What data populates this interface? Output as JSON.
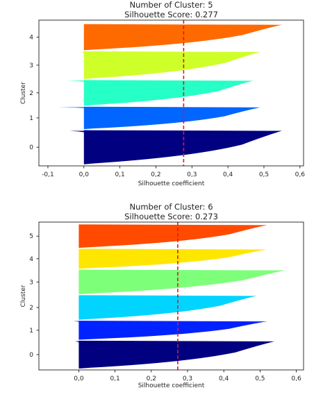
{
  "chart_data": [
    {
      "type": "area",
      "title": "Number of Cluster: 5",
      "subtitle": "Silhouette Score: 0.277",
      "xlabel": "Silhouette coefficient",
      "ylabel": "Cluster",
      "xlim": [
        -0.125,
        0.61
      ],
      "x_ticks": [
        -0.1,
        0.0,
        0.1,
        0.2,
        0.3,
        0.4,
        0.5,
        0.6
      ],
      "x_tick_labels": [
        "-0,1",
        "0,0",
        "0,1",
        "0,2",
        "0,3",
        "0,4",
        "0,5",
        "0,6"
      ],
      "ylim": [
        -0.72,
        4.75
      ],
      "y_ticks": [
        0,
        1,
        2,
        3,
        4
      ],
      "average_line": {
        "value": 0.277,
        "color": "#e8141a",
        "style": "dashed"
      },
      "clusters": [
        {
          "label": "0",
          "y_start": -0.66,
          "y_end": 0.62,
          "min": -0.04,
          "max": 0.55,
          "color": "#000080"
        },
        {
          "label": "1",
          "y_start": 0.66,
          "y_end": 1.5,
          "min": -0.07,
          "max": 0.49,
          "color": "#0066ff"
        },
        {
          "label": "2",
          "y_start": 1.54,
          "y_end": 2.5,
          "min": -0.05,
          "max": 0.47,
          "color": "#26ffc6"
        },
        {
          "label": "3",
          "y_start": 2.54,
          "y_end": 3.58,
          "min": -0.01,
          "max": 0.49,
          "color": "#ceff29"
        },
        {
          "label": "4",
          "y_start": 3.62,
          "y_end": 4.6,
          "min": 0.0,
          "max": 0.55,
          "color": "#ff6a00"
        }
      ]
    },
    {
      "type": "area",
      "title": "Number of Cluster: 6",
      "subtitle": "Silhouette Score: 0.273",
      "xlabel": "Silhouette coefficient",
      "ylabel": "Cluster",
      "xlim": [
        -0.11,
        0.62
      ],
      "x_ticks": [
        0.0,
        0.1,
        0.2,
        0.3,
        0.4,
        0.5,
        0.6
      ],
      "x_tick_labels": [
        "0,0",
        "0,1",
        "0,2",
        "0,3",
        "0,4",
        "0,5",
        "0,6"
      ],
      "ylim": [
        -0.72,
        5.65
      ],
      "y_ticks": [
        0,
        1,
        2,
        3,
        4,
        5
      ],
      "average_line": {
        "value": 0.273,
        "color": "#e8141a",
        "style": "dashed"
      },
      "clusters": [
        {
          "label": "0",
          "y_start": -0.66,
          "y_end": 0.54,
          "min": -0.01,
          "max": 0.54,
          "color": "#000080"
        },
        {
          "label": "1",
          "y_start": 0.58,
          "y_end": 1.4,
          "min": -0.015,
          "max": 0.52,
          "color": "#0022ff"
        },
        {
          "label": "2",
          "y_start": 1.44,
          "y_end": 2.5,
          "min": 0.0,
          "max": 0.49,
          "color": "#00d4ff"
        },
        {
          "label": "3",
          "y_start": 2.54,
          "y_end": 3.6,
          "min": 0.0,
          "max": 0.57,
          "color": "#7dff7a"
        },
        {
          "label": "4",
          "y_start": 3.64,
          "y_end": 4.5,
          "min": 0.0,
          "max": 0.52,
          "color": "#ffe600"
        },
        {
          "label": "5",
          "y_start": 4.54,
          "y_end": 5.55,
          "min": 0.0,
          "max": 0.52,
          "color": "#ff4a00"
        }
      ]
    }
  ]
}
